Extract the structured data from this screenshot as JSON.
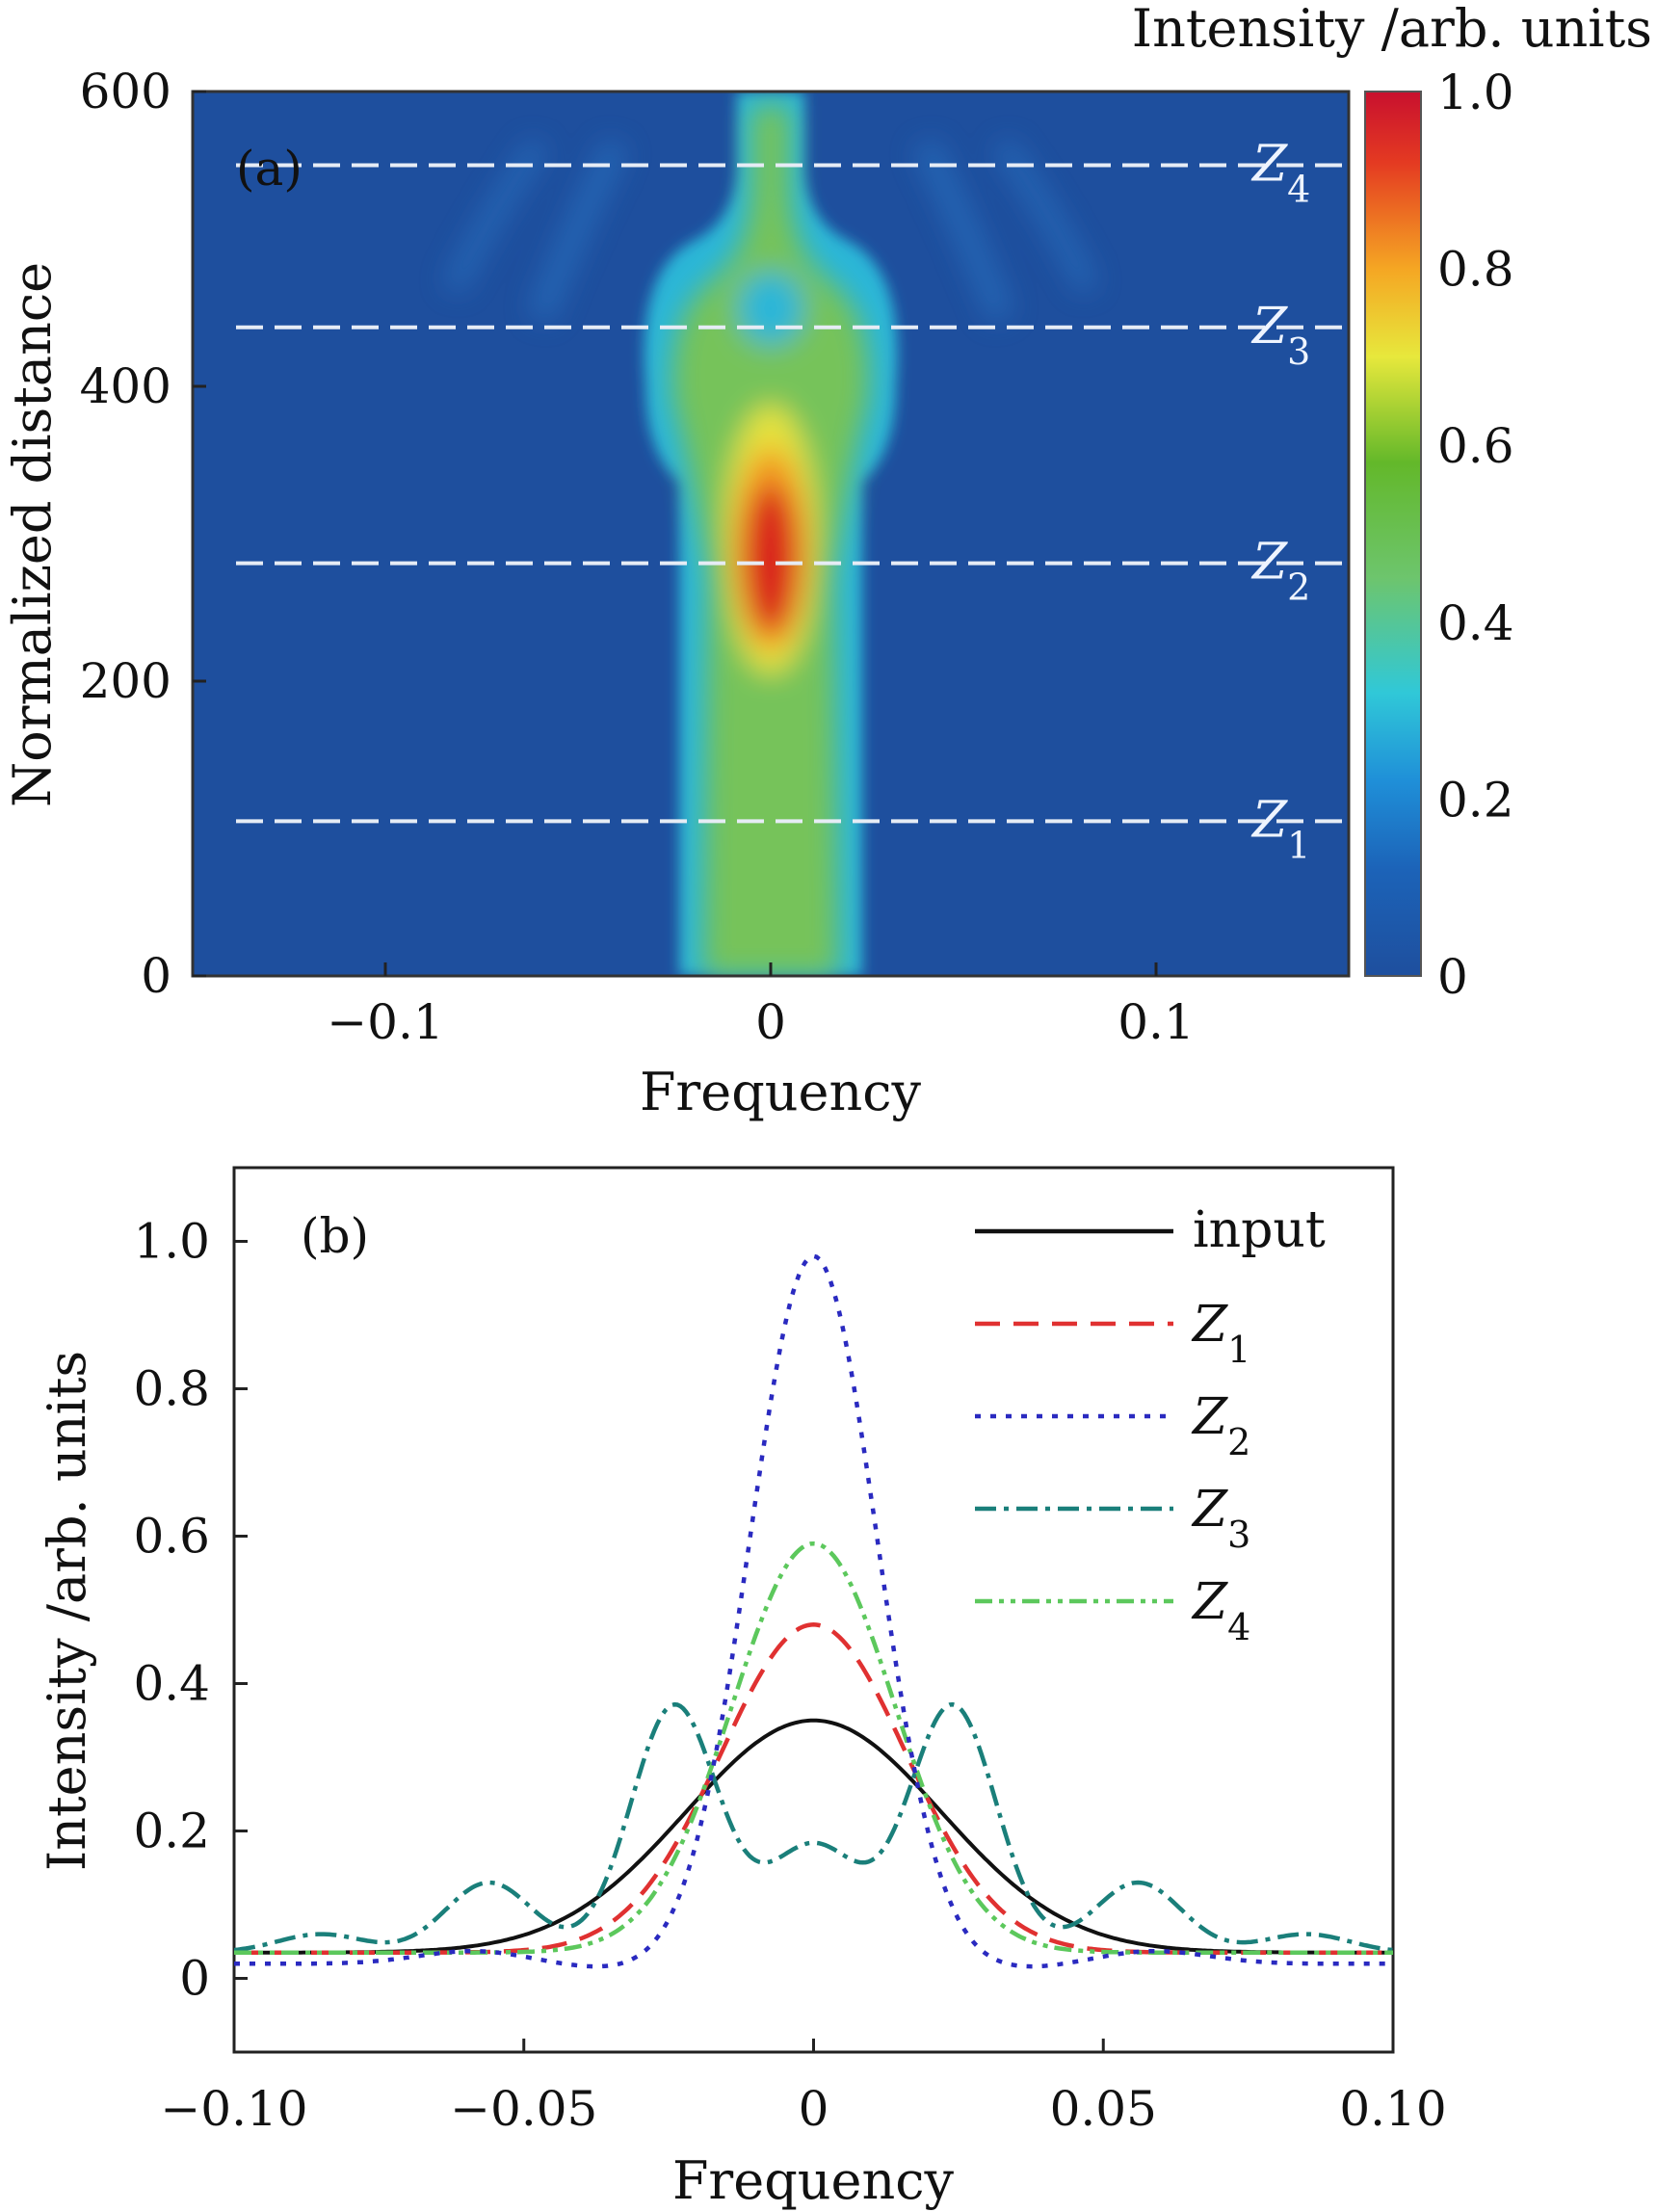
{
  "chart_data": [
    {
      "panel": "(a)",
      "type": "heatmap",
      "xlabel": "Frequency",
      "ylabel": "Normalized distance",
      "xlim": [
        -0.15,
        0.15
      ],
      "ylim": [
        0,
        600
      ],
      "xticks": [
        -0.1,
        0,
        0.1
      ],
      "xtick_labels": [
        "−0.1",
        "0",
        "0.1"
      ],
      "yticks": [
        0,
        200,
        400,
        600
      ],
      "ytick_labels": [
        "0",
        "200",
        "400",
        "600"
      ],
      "colorbar": {
        "title": "Intensity /arb. units",
        "range": [
          0,
          1
        ],
        "ticks": [
          0,
          0.2,
          0.4,
          0.6,
          0.8,
          1.0
        ],
        "tick_labels": [
          "0",
          "0.2",
          "0.4",
          "0.6",
          "0.8",
          "1.0"
        ],
        "colormap": [
          "#1e4f9e",
          "#1f8fd8",
          "#30c8d8",
          "#6dc56d",
          "#63b82a",
          "#e7e83c",
          "#f5a623",
          "#e43a22",
          "#c8102e"
        ]
      },
      "features": [
        {
          "description": "central band",
          "x": 0,
          "y_range": [
            0,
            600
          ],
          "peak": 1.0,
          "peak_y": 280
        },
        {
          "description": "ring split",
          "x": 0,
          "y_range": [
            380,
            500
          ]
        }
      ],
      "markers": [
        {
          "name": "Z",
          "sub": "1",
          "y": 105
        },
        {
          "name": "Z",
          "sub": "2",
          "y": 280
        },
        {
          "name": "Z",
          "sub": "3",
          "y": 440
        },
        {
          "name": "Z",
          "sub": "4",
          "y": 550
        }
      ]
    },
    {
      "panel": "(b)",
      "type": "line",
      "xlabel": "Frequency",
      "ylabel": "Intensity /arb. units",
      "xlim": [
        -0.1,
        0.1
      ],
      "ylim": [
        -0.1,
        1.1
      ],
      "xticks": [
        -0.1,
        -0.05,
        0,
        0.05,
        0.1
      ],
      "xtick_labels": [
        "−0.10",
        "−0.05",
        "0",
        "0.05",
        "0.10"
      ],
      "yticks": [
        0,
        0.2,
        0.4,
        0.6,
        0.8,
        1.0
      ],
      "ytick_labels": [
        "0",
        "0.2",
        "0.4",
        "0.6",
        "0.8",
        "1.0"
      ],
      "series": [
        {
          "name": "input",
          "sub": "",
          "color": "#111111",
          "dash": "none",
          "peak": 0.35,
          "width": 0.022,
          "base": 0.035
        },
        {
          "name": "Z",
          "sub": "1",
          "color": "#e03131",
          "dash": "26,14",
          "peak": 0.48,
          "width": 0.016,
          "base": 0.035
        },
        {
          "name": "Z",
          "sub": "2",
          "color": "#2a2ac0",
          "dash": "6,10",
          "peak": 0.98,
          "width": 0.011,
          "base": 0.02
        },
        {
          "name": "Z",
          "sub": "3",
          "color": "#1a7f7a",
          "dash": "22,8,5,8",
          "peak": 0.37,
          "width": 0.012,
          "base": 0.035
        },
        {
          "name": "Z",
          "sub": "4",
          "color": "#5cc85c",
          "dash": "18,7,5,7,5,7",
          "peak": 0.59,
          "width": 0.014,
          "base": 0.035
        }
      ],
      "z3_features": {
        "peaks_x": [
          -0.085,
          -0.056,
          -0.024,
          0.024,
          0.056,
          0.085
        ],
        "peaks_y": [
          0.06,
          0.13,
          0.37,
          0.37,
          0.13,
          0.06
        ],
        "center_dip": 0.18
      }
    }
  ]
}
